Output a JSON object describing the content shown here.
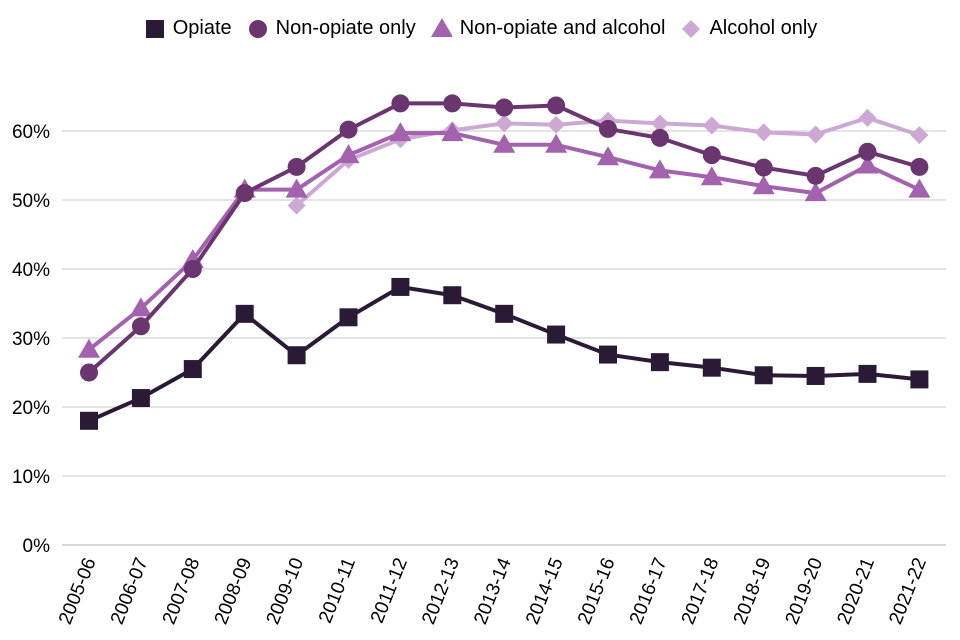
{
  "chart_data": {
    "type": "line",
    "categories": [
      "2005-06",
      "2006-07",
      "2007-08",
      "2008-09",
      "2009-10",
      "2010-11",
      "2011-12",
      "2012-13",
      "2013-14",
      "2014-15",
      "2015-16",
      "2016-17",
      "2017-18",
      "2018-19",
      "2019-20",
      "2020-21",
      "2021-22"
    ],
    "ylim": [
      0,
      0.7
    ],
    "yticks": [
      "0%",
      "10%",
      "20%",
      "30%",
      "40%",
      "50%",
      "60%"
    ],
    "grid": "horizontal",
    "legend_position": "top",
    "series": [
      {
        "name": "Opiate",
        "marker": "square",
        "color": "#2b1a36",
        "values": [
          0.18,
          0.213,
          0.255,
          0.335,
          0.275,
          0.33,
          0.374,
          0.362,
          0.335,
          0.305,
          0.276,
          0.265,
          0.257,
          0.246,
          0.245,
          0.248,
          0.24
        ]
      },
      {
        "name": "Non-opiate only",
        "marker": "circle",
        "color": "#6b3570",
        "values": [
          0.25,
          0.317,
          0.4,
          0.51,
          0.548,
          0.602,
          0.64,
          0.64,
          0.634,
          0.637,
          0.603,
          0.59,
          0.565,
          0.547,
          0.535,
          0.57,
          0.548
        ]
      },
      {
        "name": "Non-opiate and alcohol",
        "marker": "triangle",
        "color": "#a262ae",
        "values": [
          0.283,
          0.343,
          0.413,
          0.515,
          0.515,
          0.565,
          0.597,
          0.597,
          0.58,
          0.58,
          0.562,
          0.543,
          0.533,
          0.52,
          0.51,
          0.55,
          0.515
        ]
      },
      {
        "name": "Alcohol only",
        "marker": "diamond",
        "color": "#cda8d5",
        "values": [
          null,
          null,
          null,
          null,
          0.492,
          0.558,
          0.588,
          0.601,
          0.611,
          0.609,
          0.615,
          0.611,
          0.608,
          0.598,
          0.595,
          0.619,
          0.594
        ]
      }
    ]
  }
}
